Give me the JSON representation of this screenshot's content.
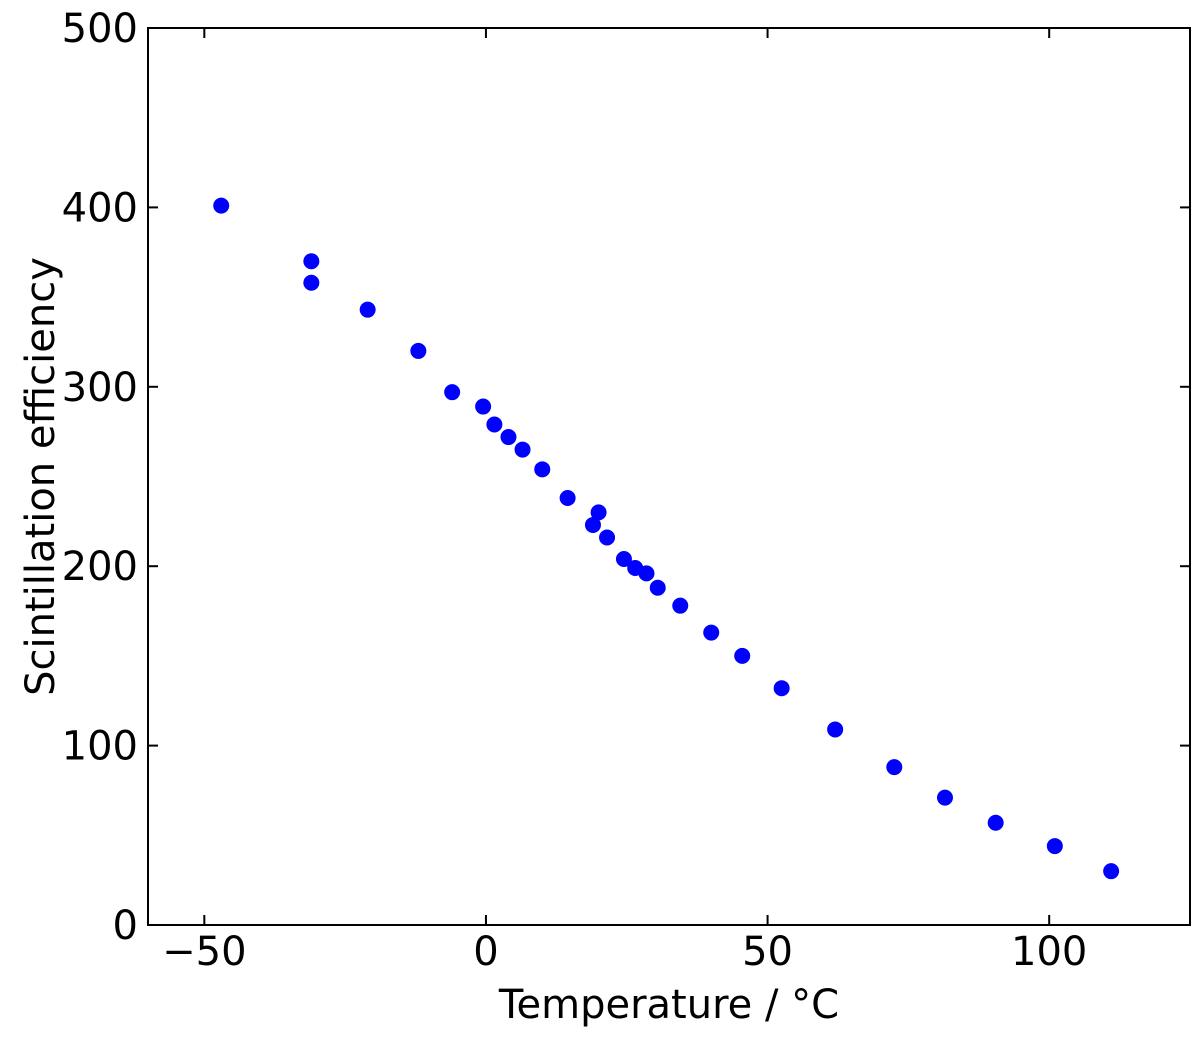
{
  "chart_data": {
    "type": "scatter",
    "title": "",
    "xlabel": "Temperature / °C",
    "ylabel": "Scintillation efficiency",
    "xlim": [
      -60,
      125
    ],
    "ylim": [
      0,
      500
    ],
    "xticks": [
      -50,
      0,
      50,
      100
    ],
    "yticks": [
      0,
      100,
      200,
      300,
      400,
      500
    ],
    "xtick_labels": [
      "−50",
      "0",
      "50",
      "100"
    ],
    "ytick_labels": [
      "0",
      "100",
      "200",
      "300",
      "400",
      "500"
    ],
    "grid": false,
    "legend": "none",
    "marker_color": "#0000ff",
    "series": [
      {
        "points": [
          {
            "x": -47,
            "y": 401
          },
          {
            "x": -31,
            "y": 370
          },
          {
            "x": -31,
            "y": 358
          },
          {
            "x": -21,
            "y": 343
          },
          {
            "x": -12,
            "y": 320
          },
          {
            "x": -6,
            "y": 297
          },
          {
            "x": -0.5,
            "y": 289
          },
          {
            "x": 1.5,
            "y": 279
          },
          {
            "x": 4,
            "y": 272
          },
          {
            "x": 6.5,
            "y": 265
          },
          {
            "x": 10,
            "y": 254
          },
          {
            "x": 14.5,
            "y": 238
          },
          {
            "x": 19,
            "y": 223
          },
          {
            "x": 20,
            "y": 230
          },
          {
            "x": 21.5,
            "y": 216
          },
          {
            "x": 24.5,
            "y": 204
          },
          {
            "x": 26.5,
            "y": 199
          },
          {
            "x": 28.5,
            "y": 196
          },
          {
            "x": 30.5,
            "y": 188
          },
          {
            "x": 34.5,
            "y": 178
          },
          {
            "x": 40,
            "y": 163
          },
          {
            "x": 45.5,
            "y": 150
          },
          {
            "x": 52.5,
            "y": 132
          },
          {
            "x": 62,
            "y": 109
          },
          {
            "x": 72.5,
            "y": 88
          },
          {
            "x": 81.5,
            "y": 71
          },
          {
            "x": 90.5,
            "y": 57
          },
          {
            "x": 101,
            "y": 44
          },
          {
            "x": 111,
            "y": 30
          }
        ]
      }
    ]
  }
}
